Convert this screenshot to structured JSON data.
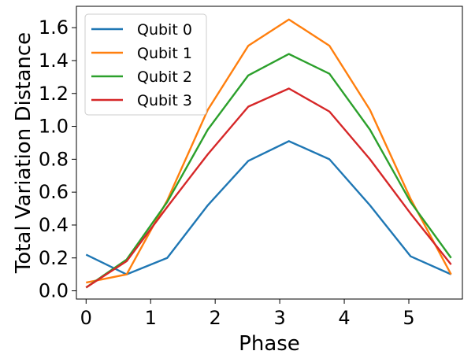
{
  "chart_data": {
    "type": "line",
    "xlabel": "Phase",
    "ylabel": "Total Variation Distance",
    "xlim": [
      -0.15,
      5.83
    ],
    "ylim": [
      -0.05,
      1.73
    ],
    "xticks": [
      "0",
      "1",
      "2",
      "3",
      "4",
      "5"
    ],
    "yticks": [
      "0.0",
      "0.2",
      "0.4",
      "0.6",
      "0.8",
      "1.0",
      "1.2",
      "1.4",
      "1.6"
    ],
    "grid": false,
    "legend_position": "top-left",
    "x": [
      0,
      0.628,
      1.257,
      1.885,
      2.513,
      3.142,
      3.77,
      4.398,
      5.027,
      5.655
    ],
    "series": [
      {
        "name": "Qubit 0",
        "color": "#1f77b4",
        "values": [
          0.22,
          0.1,
          0.2,
          0.52,
          0.79,
          0.91,
          0.8,
          0.52,
          0.21,
          0.1
        ]
      },
      {
        "name": "Qubit 1",
        "color": "#ff7f0e",
        "values": [
          0.05,
          0.1,
          0.55,
          1.1,
          1.49,
          1.65,
          1.49,
          1.1,
          0.56,
          0.1
        ]
      },
      {
        "name": "Qubit 2",
        "color": "#2ca02c",
        "values": [
          0.02,
          0.19,
          0.54,
          0.98,
          1.31,
          1.44,
          1.32,
          0.98,
          0.54,
          0.2
        ]
      },
      {
        "name": "Qubit 3",
        "color": "#d62728",
        "values": [
          0.02,
          0.18,
          0.51,
          0.83,
          1.12,
          1.23,
          1.09,
          0.8,
          0.47,
          0.16
        ]
      }
    ]
  }
}
